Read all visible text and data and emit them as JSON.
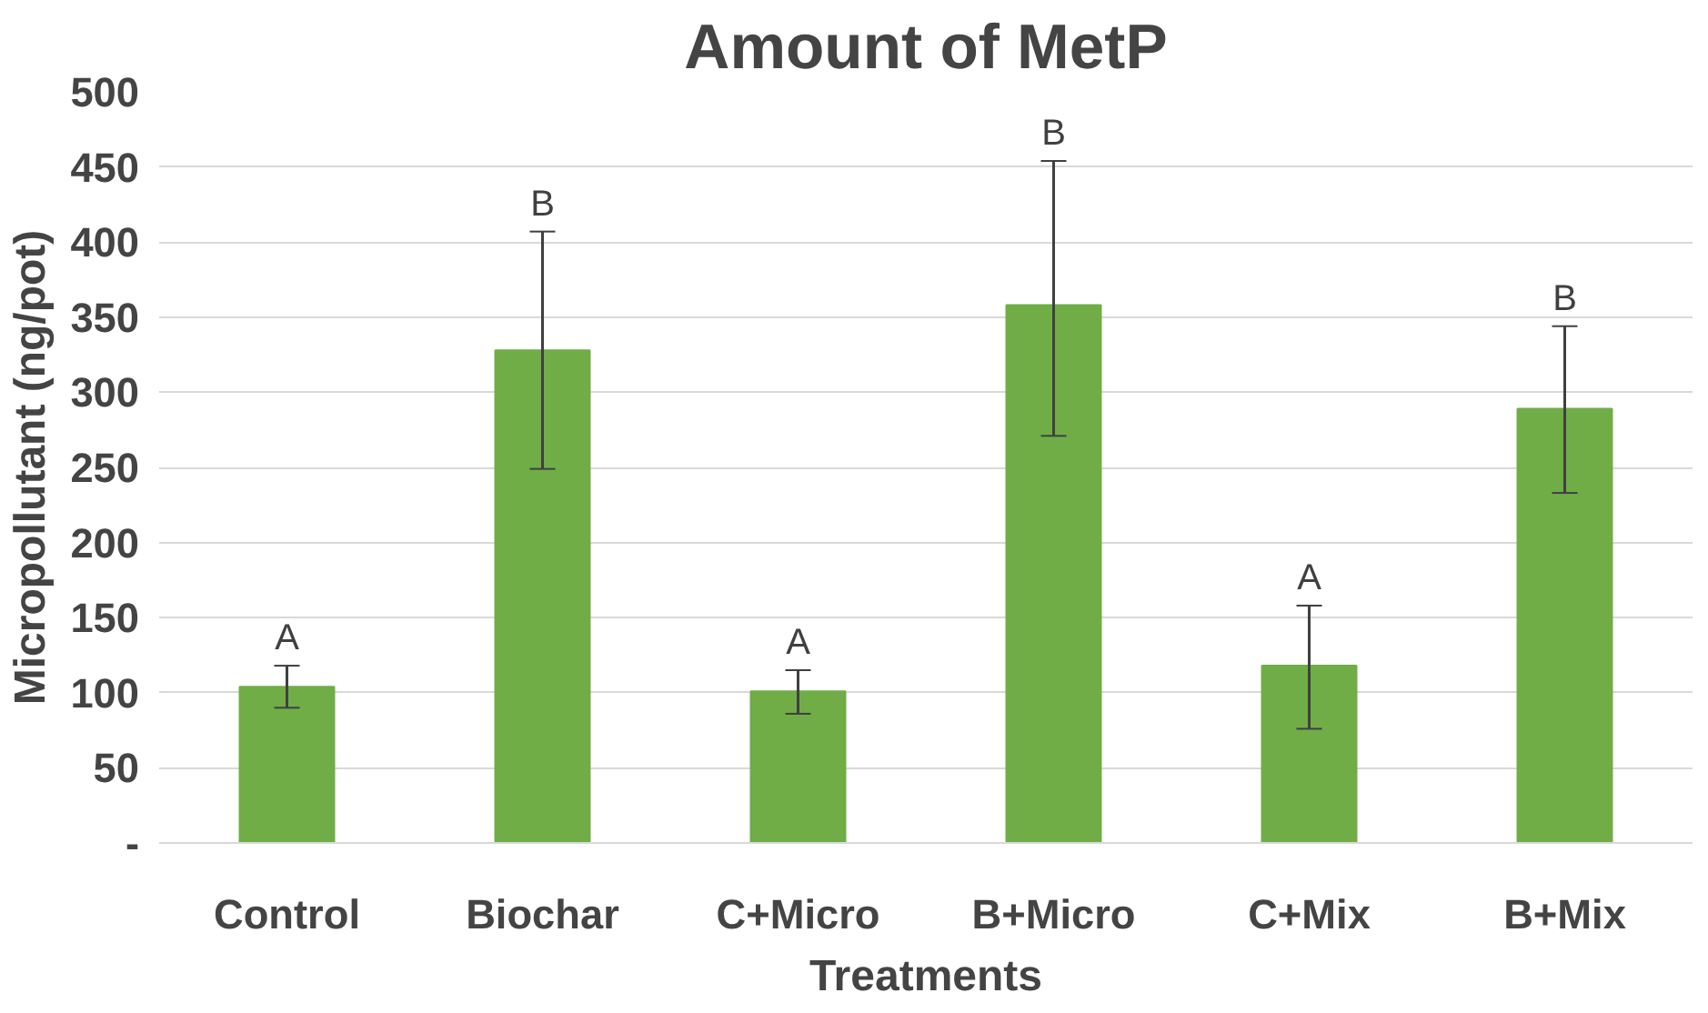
{
  "chart_data": {
    "type": "bar",
    "title": "Amount of MetP",
    "xlabel": "Treatments",
    "ylabel": "Micropollutant (ng/pot)",
    "categories": [
      "Control",
      "Biochar",
      "C+Micro",
      "B+Micro",
      "C+Mix",
      "B+Mix"
    ],
    "values": [
      104,
      328,
      101,
      358,
      118,
      289
    ],
    "errors": [
      [
        90,
        118
      ],
      [
        249,
        407
      ],
      [
        86,
        115
      ],
      [
        271,
        454
      ],
      [
        76,
        158
      ],
      [
        233,
        344
      ]
    ],
    "color": "#70ad47",
    "ylim": [
      0,
      500
    ],
    "yticks": [
      {
        "value": 0,
        "label": "-"
      },
      50,
      100,
      150,
      200,
      250,
      300,
      350,
      400,
      450,
      500
    ],
    "grid": "y",
    "annotations": [
      "A",
      "B",
      "A",
      "B",
      "A",
      "B"
    ]
  }
}
